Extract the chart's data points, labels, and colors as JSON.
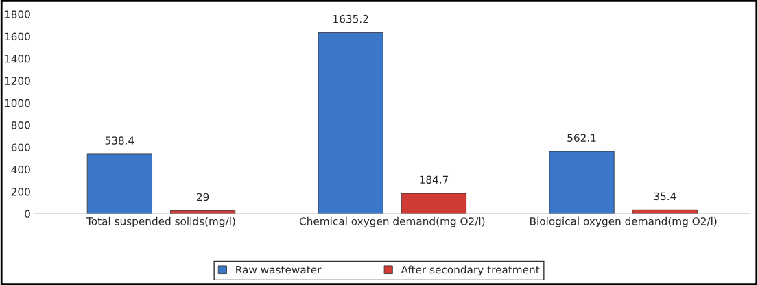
{
  "chart_data": {
    "type": "bar",
    "categories": [
      "Total suspended solids(mg/l)",
      "Chemical oxygen demand(mg O2/l)",
      "Biological oxygen demand(mg O2/l)"
    ],
    "series": [
      {
        "name": "Raw wastewater",
        "color": "#3a77c9",
        "values": [
          538.4,
          1635.2,
          562.1
        ]
      },
      {
        "name": "After secondary treatment",
        "color": "#d03b35",
        "values": [
          29,
          184.7,
          35.4
        ]
      }
    ],
    "ylim": [
      0,
      1800
    ],
    "yticks": [
      0,
      200,
      400,
      600,
      800,
      1000,
      1200,
      1400,
      1600,
      1800
    ],
    "data_labels": true,
    "grid": false,
    "legend": "bottom"
  }
}
